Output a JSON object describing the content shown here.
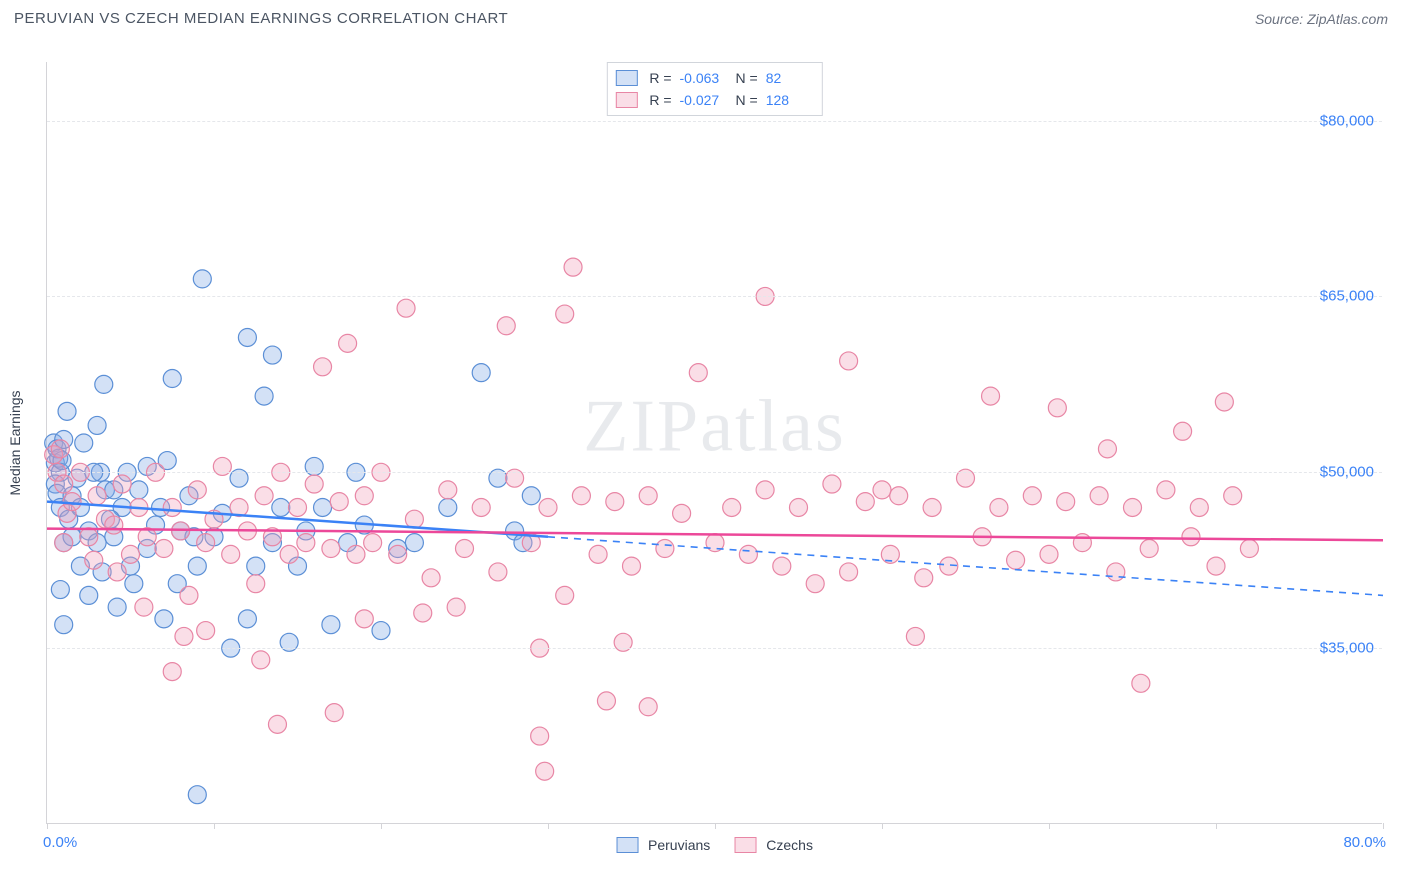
{
  "header": {
    "title": "PERUVIAN VS CZECH MEDIAN EARNINGS CORRELATION CHART",
    "source": "Source: ZipAtlas.com"
  },
  "watermark": "ZIPatlas",
  "chart": {
    "type": "scatter",
    "ylabel": "Median Earnings",
    "xlim": [
      0,
      80
    ],
    "ylim": [
      20000,
      85000
    ],
    "yticks": [
      35000,
      50000,
      65000,
      80000
    ],
    "ytick_labels": [
      "$35,000",
      "$50,000",
      "$65,000",
      "$80,000"
    ],
    "xticks": [
      0,
      10,
      20,
      30,
      40,
      50,
      60,
      70,
      80
    ],
    "x_axis_left_label": "0.0%",
    "x_axis_right_label": "80.0%",
    "grid_color": "#e5e7eb",
    "axis_color": "#d4d4d8",
    "marker_radius": 9,
    "marker_stroke_width": 1.2,
    "series": [
      {
        "name": "Peruvians",
        "fill": "rgba(128,170,230,0.35)",
        "stroke": "#5b8fd6",
        "R": "-0.063",
        "N": "82",
        "trend": {
          "y_at_xmin": 47500,
          "y_at_xmax": 39500,
          "solid_until_x": 30,
          "color": "#3b82f6"
        },
        "points": [
          [
            0.4,
            52500
          ],
          [
            0.5,
            50800
          ],
          [
            0.6,
            52000
          ],
          [
            0.7,
            51200
          ],
          [
            0.8,
            50000
          ],
          [
            0.9,
            51000
          ],
          [
            0.5,
            49000
          ],
          [
            0.6,
            48200
          ],
          [
            0.8,
            47000
          ],
          [
            1.0,
            52800
          ],
          [
            1.2,
            55200
          ],
          [
            1.0,
            44000
          ],
          [
            1.5,
            48000
          ],
          [
            1.3,
            46000
          ],
          [
            2.0,
            47000
          ],
          [
            1.8,
            49500
          ],
          [
            2.2,
            52500
          ],
          [
            2.5,
            45000
          ],
          [
            2.0,
            42000
          ],
          [
            3.0,
            44000
          ],
          [
            3.2,
            50000
          ],
          [
            3.5,
            48500
          ],
          [
            3.0,
            54000
          ],
          [
            3.4,
            57500
          ],
          [
            4.0,
            44500
          ],
          [
            4.2,
            38500
          ],
          [
            4.5,
            47000
          ],
          [
            4.8,
            50000
          ],
          [
            5.0,
            42000
          ],
          [
            3.8,
            46000
          ],
          [
            5.5,
            48500
          ],
          [
            6.0,
            43500
          ],
          [
            6.0,
            50500
          ],
          [
            6.5,
            45500
          ],
          [
            7.0,
            37500
          ],
          [
            7.2,
            51000
          ],
          [
            7.5,
            58000
          ],
          [
            8.0,
            45000
          ],
          [
            8.5,
            48000
          ],
          [
            9.0,
            42000
          ],
          [
            9.3,
            66500
          ],
          [
            10.0,
            44500
          ],
          [
            10.5,
            46500
          ],
          [
            11.0,
            35000
          ],
          [
            11.5,
            49500
          ],
          [
            12.0,
            37500
          ],
          [
            12.5,
            42000
          ],
          [
            13.0,
            56500
          ],
          [
            13.5,
            44000
          ],
          [
            14.0,
            47000
          ],
          [
            14.5,
            35500
          ],
          [
            15.0,
            42000
          ],
          [
            15.5,
            45000
          ],
          [
            16.0,
            50500
          ],
          [
            16.5,
            47000
          ],
          [
            17.0,
            37000
          ],
          [
            9.0,
            22500
          ],
          [
            12.0,
            61500
          ],
          [
            13.5,
            60000
          ],
          [
            18.0,
            44000
          ],
          [
            18.5,
            50000
          ],
          [
            19.0,
            45500
          ],
          [
            20.0,
            36500
          ],
          [
            21.0,
            43500
          ],
          [
            22.0,
            44000
          ],
          [
            24.0,
            47000
          ],
          [
            26.0,
            58500
          ],
          [
            27.0,
            49500
          ],
          [
            28.0,
            45000
          ],
          [
            28.5,
            44000
          ],
          [
            29.0,
            48000
          ],
          [
            5.2,
            40500
          ],
          [
            2.8,
            50000
          ],
          [
            4.0,
            48500
          ],
          [
            6.8,
            47000
          ],
          [
            1.5,
            44500
          ],
          [
            1.0,
            37000
          ],
          [
            0.8,
            40000
          ],
          [
            2.5,
            39500
          ],
          [
            3.3,
            41500
          ],
          [
            7.8,
            40500
          ],
          [
            8.8,
            44500
          ]
        ]
      },
      {
        "name": "Czechs",
        "fill": "rgba(240,160,185,0.35)",
        "stroke": "#e886a5",
        "R": "-0.027",
        "N": "128",
        "trend": {
          "y_at_xmin": 45200,
          "y_at_xmax": 44200,
          "solid_until_x": 80,
          "color": "#ec4899"
        },
        "points": [
          [
            0.4,
            51500
          ],
          [
            0.6,
            50000
          ],
          [
            0.8,
            52000
          ],
          [
            1.0,
            49000
          ],
          [
            1.2,
            46500
          ],
          [
            1.5,
            47500
          ],
          [
            1.0,
            44000
          ],
          [
            2.0,
            50000
          ],
          [
            2.5,
            44500
          ],
          [
            3.0,
            48000
          ],
          [
            3.5,
            46000
          ],
          [
            4.0,
            45500
          ],
          [
            4.5,
            49000
          ],
          [
            5.0,
            43000
          ],
          [
            5.5,
            47000
          ],
          [
            6.0,
            44500
          ],
          [
            6.5,
            50000
          ],
          [
            7.0,
            43500
          ],
          [
            7.5,
            47000
          ],
          [
            8.0,
            45000
          ],
          [
            8.5,
            39500
          ],
          [
            9.0,
            48500
          ],
          [
            9.5,
            44000
          ],
          [
            10.0,
            46000
          ],
          [
            10.5,
            50500
          ],
          [
            11.0,
            43000
          ],
          [
            11.5,
            47000
          ],
          [
            12.0,
            45000
          ],
          [
            12.5,
            40500
          ],
          [
            13.0,
            48000
          ],
          [
            13.5,
            44500
          ],
          [
            14.0,
            50000
          ],
          [
            14.5,
            43000
          ],
          [
            15.0,
            47000
          ],
          [
            15.5,
            44000
          ],
          [
            16.0,
            49000
          ],
          [
            16.5,
            59000
          ],
          [
            17.0,
            43500
          ],
          [
            17.5,
            47500
          ],
          [
            18.0,
            61000
          ],
          [
            18.5,
            43000
          ],
          [
            19.0,
            48000
          ],
          [
            19.5,
            44000
          ],
          [
            20.0,
            50000
          ],
          [
            21.0,
            43000
          ],
          [
            22.0,
            46000
          ],
          [
            23.0,
            41000
          ],
          [
            24.0,
            48500
          ],
          [
            25.0,
            43500
          ],
          [
            26.0,
            47000
          ],
          [
            27.0,
            41500
          ],
          [
            28.0,
            49500
          ],
          [
            29.0,
            44000
          ],
          [
            29.5,
            35000
          ],
          [
            30.0,
            47000
          ],
          [
            31.0,
            63500
          ],
          [
            31.0,
            39500
          ],
          [
            31.5,
            67500
          ],
          [
            32.0,
            48000
          ],
          [
            33.0,
            43000
          ],
          [
            34.0,
            47500
          ],
          [
            34.5,
            35500
          ],
          [
            35.0,
            42000
          ],
          [
            36.0,
            48000
          ],
          [
            36.0,
            30000
          ],
          [
            37.0,
            43500
          ],
          [
            38.0,
            46500
          ],
          [
            39.0,
            58500
          ],
          [
            40.0,
            44000
          ],
          [
            41.0,
            47000
          ],
          [
            42.0,
            43000
          ],
          [
            43.0,
            65000
          ],
          [
            43.0,
            48500
          ],
          [
            44.0,
            42000
          ],
          [
            45.0,
            47000
          ],
          [
            46.0,
            40500
          ],
          [
            47.0,
            49000
          ],
          [
            48.0,
            59500
          ],
          [
            48.0,
            41500
          ],
          [
            49.0,
            47500
          ],
          [
            50.0,
            48500
          ],
          [
            50.5,
            43000
          ],
          [
            51.0,
            48000
          ],
          [
            52.0,
            36000
          ],
          [
            52.5,
            41000
          ],
          [
            53.0,
            47000
          ],
          [
            54.0,
            42000
          ],
          [
            55.0,
            49500
          ],
          [
            56.0,
            44500
          ],
          [
            56.5,
            56500
          ],
          [
            57.0,
            47000
          ],
          [
            58.0,
            42500
          ],
          [
            59.0,
            48000
          ],
          [
            60.0,
            43000
          ],
          [
            60.5,
            55500
          ],
          [
            61.0,
            47500
          ],
          [
            62.0,
            44000
          ],
          [
            63.0,
            48000
          ],
          [
            63.5,
            52000
          ],
          [
            64.0,
            41500
          ],
          [
            65.0,
            47000
          ],
          [
            65.5,
            32000
          ],
          [
            66.0,
            43500
          ],
          [
            67.0,
            48500
          ],
          [
            68.0,
            53500
          ],
          [
            68.5,
            44500
          ],
          [
            69.0,
            47000
          ],
          [
            70.0,
            42000
          ],
          [
            70.5,
            56000
          ],
          [
            71.0,
            48000
          ],
          [
            72.0,
            43500
          ],
          [
            21.5,
            64000
          ],
          [
            24.5,
            38500
          ],
          [
            27.5,
            62500
          ],
          [
            12.8,
            34000
          ],
          [
            33.5,
            30500
          ],
          [
            29.5,
            27500
          ],
          [
            29.8,
            24500
          ],
          [
            13.8,
            28500
          ],
          [
            17.2,
            29500
          ],
          [
            7.5,
            33000
          ],
          [
            9.5,
            36500
          ],
          [
            5.8,
            38500
          ],
          [
            4.2,
            41500
          ],
          [
            2.8,
            42500
          ],
          [
            19.0,
            37500
          ],
          [
            22.5,
            38000
          ],
          [
            8.2,
            36000
          ]
        ]
      }
    ],
    "legend_top": {
      "r_label": "R =",
      "n_label": "N ="
    },
    "legend_bottom": [
      "Peruvians",
      "Czechs"
    ]
  }
}
